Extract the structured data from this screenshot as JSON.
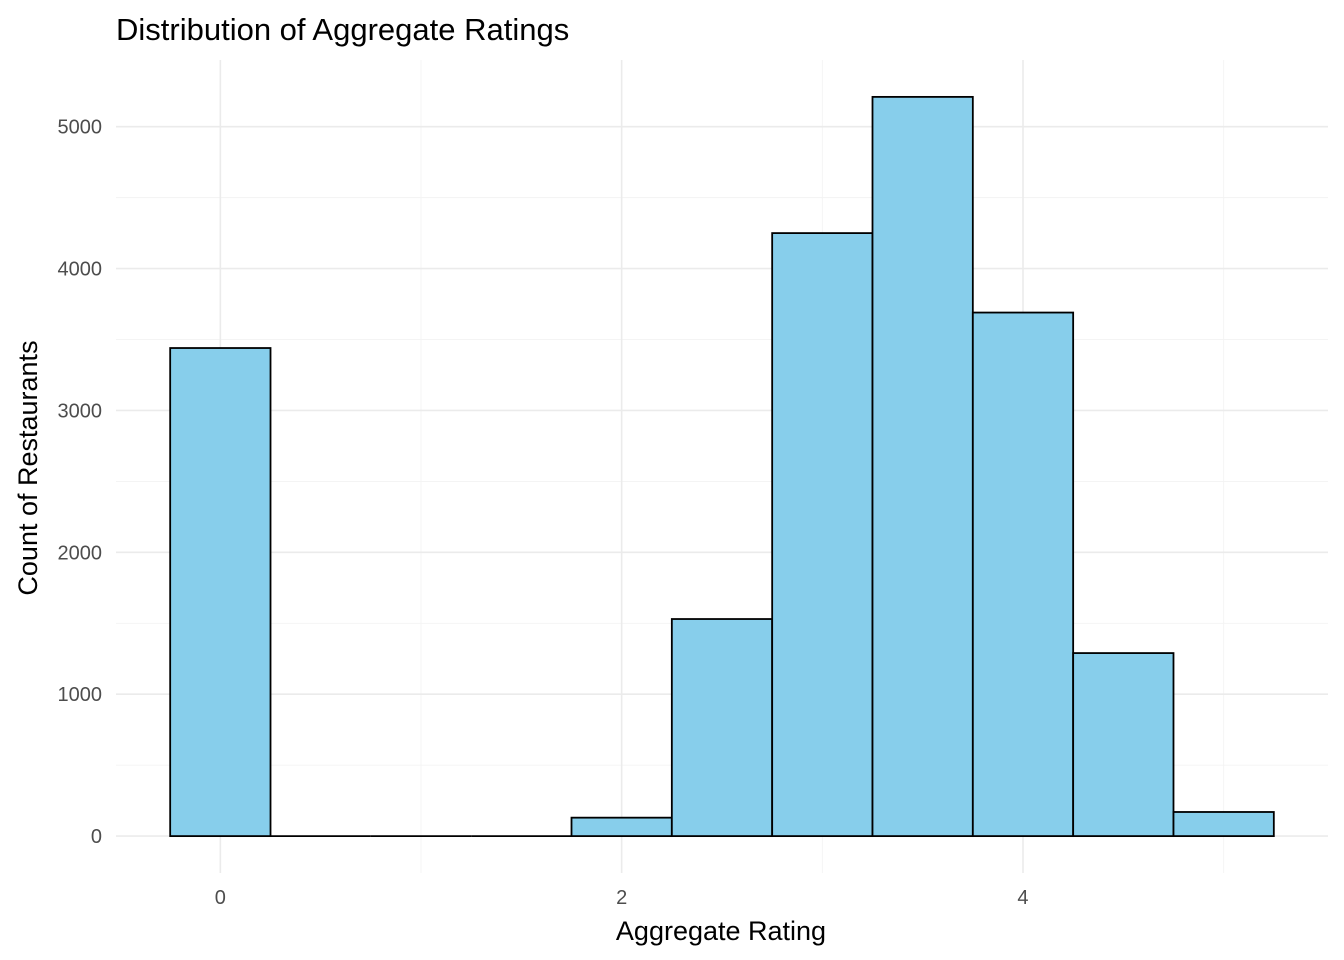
{
  "chart_data": {
    "type": "bar",
    "title": "Distribution of Aggregate Ratings",
    "xlabel": "Aggregate Rating",
    "ylabel": "Count of Restaurants",
    "bin_width": 0.5,
    "bins": [
      {
        "x_start": -0.25,
        "x_end": 0.25,
        "count": 3440
      },
      {
        "x_start": 0.25,
        "x_end": 0.75,
        "count": 0
      },
      {
        "x_start": 0.75,
        "x_end": 1.25,
        "count": 0
      },
      {
        "x_start": 1.25,
        "x_end": 1.75,
        "count": 0
      },
      {
        "x_start": 1.75,
        "x_end": 2.25,
        "count": 130
      },
      {
        "x_start": 2.25,
        "x_end": 2.75,
        "count": 1530
      },
      {
        "x_start": 2.75,
        "x_end": 3.25,
        "count": 4250
      },
      {
        "x_start": 3.25,
        "x_end": 3.75,
        "count": 5210
      },
      {
        "x_start": 3.75,
        "x_end": 4.25,
        "count": 3690
      },
      {
        "x_start": 4.25,
        "x_end": 4.75,
        "count": 1290
      },
      {
        "x_start": 4.75,
        "x_end": 5.25,
        "count": 170
      }
    ],
    "xlim": [
      -0.52,
      5.52
    ],
    "ylim": [
      -260,
      5470
    ],
    "x_ticks": [
      0,
      2,
      4
    ],
    "x_minor_ticks": [
      1,
      3,
      5
    ],
    "y_ticks": [
      0,
      1000,
      2000,
      3000,
      4000,
      5000
    ],
    "y_minor_ticks": [
      500,
      1500,
      2500,
      3500,
      4500
    ],
    "grid": true,
    "legend": "none",
    "bar_fill": "#87ceeb",
    "bar_outline": "#000000"
  }
}
